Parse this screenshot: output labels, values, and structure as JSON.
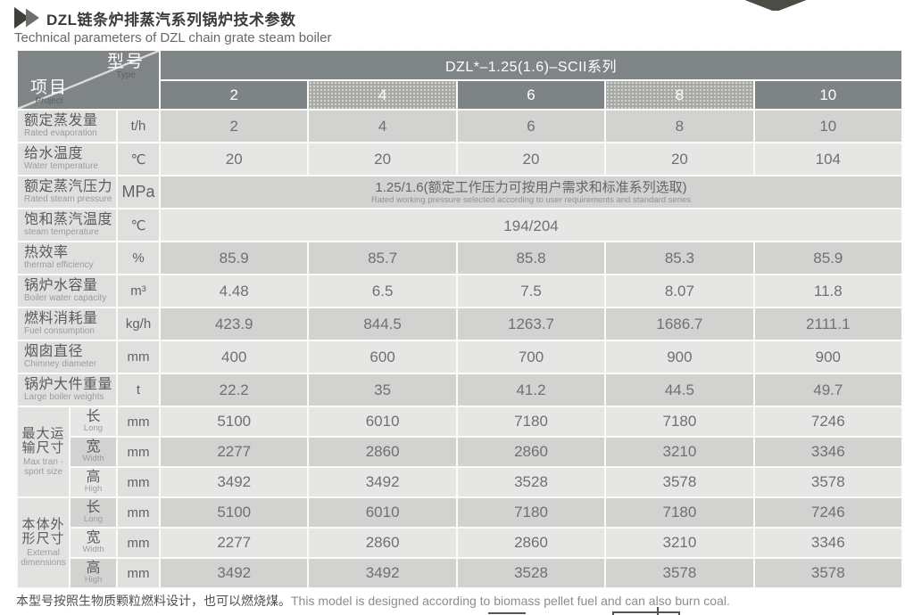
{
  "title": {
    "zh": "DZL链条炉排蒸汽系列锅炉技术参数",
    "en": "Technical parameters of DZL chain grate steam boiler"
  },
  "table": {
    "corner": {
      "top_zh": "型号",
      "top_en": "Type",
      "bottom_zh": "项目",
      "bottom_en": "Project"
    },
    "series_header": "DZL*–1.25(1.6)–SCII系列",
    "models": [
      "2",
      "4",
      "6",
      "8",
      "10"
    ],
    "rows": [
      {
        "kind": "normal",
        "zh": "额定蒸发量",
        "en": "Rated evaporation",
        "unit": "t/h",
        "values": [
          "2",
          "4",
          "6",
          "8",
          "10"
        ],
        "shade": "dark"
      },
      {
        "kind": "normal",
        "zh": "给水温度",
        "en": "Water temperature",
        "unit": "℃",
        "values": [
          "20",
          "20",
          "20",
          "20",
          "104"
        ],
        "shade": "light"
      },
      {
        "kind": "span",
        "zh": "额定蒸汽压力",
        "en": "Rated steam pressure",
        "unit": "MPa",
        "span_zh": "1.25/1.6(额定工作压力可按用户需求和标准系列选取)",
        "span_en": "Rated working pressure selected according to user requirements and standard series",
        "shade": "dark"
      },
      {
        "kind": "span",
        "zh": "饱和蒸汽温度",
        "en": "steam temperature",
        "unit": "℃",
        "span_zh": "194/204",
        "span_en": "",
        "shade": "light"
      },
      {
        "kind": "normal",
        "zh": "热效率",
        "en": "thermal efficiency",
        "unit": "%",
        "values": [
          "85.9",
          "85.7",
          "85.8",
          "85.3",
          "85.9"
        ],
        "shade": "dark"
      },
      {
        "kind": "normal",
        "zh": "锅炉水容量",
        "en": "Boiler water capacity",
        "unit": "m³",
        "values": [
          "4.48",
          "6.5",
          "7.5",
          "8.07",
          "11.8"
        ],
        "shade": "light"
      },
      {
        "kind": "normal",
        "zh": "燃料消耗量",
        "en": "Fuel consumption",
        "unit": "kg/h",
        "values": [
          "423.9",
          "844.5",
          "1263.7",
          "1686.7",
          "2111.1"
        ],
        "shade": "dark"
      },
      {
        "kind": "normal",
        "zh": "烟囱直径",
        "en": "Chimney diameter",
        "unit": "mm",
        "values": [
          "400",
          "600",
          "700",
          "900",
          "900"
        ],
        "shade": "light"
      },
      {
        "kind": "normal",
        "zh": "锅炉大件重量",
        "en": "Large boiler weights",
        "unit": "t",
        "values": [
          "22.2",
          "35",
          "41.2",
          "44.5",
          "49.7"
        ],
        "shade": "dark"
      },
      {
        "kind": "group",
        "zh": "最大运输尺寸",
        "en": "Max tran -sport size",
        "subrows": [
          {
            "zh": "长",
            "en": "Long",
            "unit": "mm",
            "values": [
              "5100",
              "6010",
              "7180",
              "7180",
              "7246"
            ],
            "shade": "light"
          },
          {
            "zh": "宽",
            "en": "Width",
            "unit": "mm",
            "values": [
              "2277",
              "2860",
              "2860",
              "3210",
              "3346"
            ],
            "shade": "dark"
          },
          {
            "zh": "高",
            "en": "High",
            "unit": "mm",
            "values": [
              "3492",
              "3492",
              "3528",
              "3578",
              "3578"
            ],
            "shade": "light"
          }
        ]
      },
      {
        "kind": "group",
        "zh": "本体外形尺寸",
        "en": "External dimensions",
        "subrows": [
          {
            "zh": "长",
            "en": "Long",
            "unit": "mm",
            "values": [
              "5100",
              "6010",
              "7180",
              "7180",
              "7246"
            ],
            "shade": "dark"
          },
          {
            "zh": "宽",
            "en": "Width",
            "unit": "mm",
            "values": [
              "2277",
              "2860",
              "2860",
              "3210",
              "3346"
            ],
            "shade": "light"
          },
          {
            "zh": "高",
            "en": "High",
            "unit": "mm",
            "values": [
              "3492",
              "3492",
              "3528",
              "3578",
              "3578"
            ],
            "shade": "dark"
          }
        ]
      }
    ]
  },
  "footer": {
    "zh": "本型号按照生物质颗粒燃料设计，也可以燃烧煤。",
    "en": "This model is designed according to biomass pellet fuel and can also burn coal."
  },
  "colors": {
    "header_dark": "#7f8487",
    "header_light": "#a8a9a5",
    "row_dark": "#d2d3d1",
    "row_light": "#e6e7e5",
    "label_bg": "#dfe0de",
    "title_text": "#3b3b39",
    "value_text": "#6e7072"
  },
  "icons": {
    "title_chevron": "double-right-chevron",
    "top_right_decoration": "dark-arrow-tip"
  }
}
